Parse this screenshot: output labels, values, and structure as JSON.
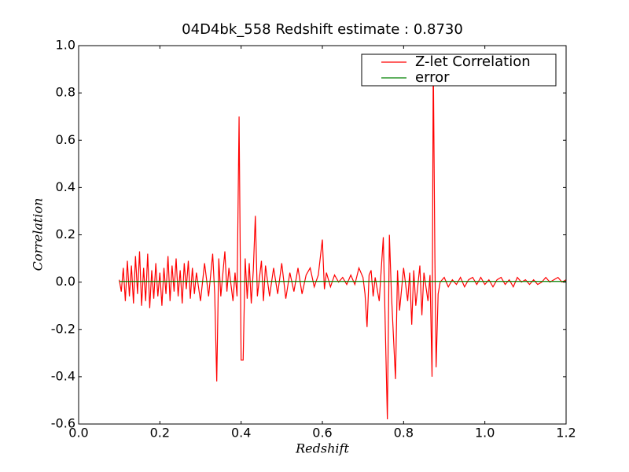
{
  "chart_data": {
    "type": "line",
    "title": "04D4bk_558 Redshift estimate : 0.8730",
    "x_label": "Redshift",
    "y_label": "Correlation",
    "xlim": [
      0,
      1.2
    ],
    "ylim": [
      -0.6,
      1.0
    ],
    "xticks": [
      {
        "value": 0,
        "label": "0.0"
      },
      0.2,
      0.4,
      0.6,
      0.8,
      {
        "value": 1,
        "label": "1.0"
      },
      1.2
    ],
    "yticks": [
      -0.6,
      -0.4,
      -0.2,
      {
        "value": 0,
        "label": "0.0"
      },
      0.2,
      0.4,
      0.6,
      0.8,
      {
        "value": 1,
        "label": "1.0"
      }
    ],
    "legend": "upper right",
    "marker": {
      "x": 0.873,
      "y": 0.9
    },
    "series": [
      {
        "name": "Z-let Correlation",
        "color": "#ff0000",
        "x": [
          0.1,
          0.105,
          0.11,
          0.115,
          0.12,
          0.125,
          0.13,
          0.135,
          0.14,
          0.145,
          0.15,
          0.155,
          0.16,
          0.165,
          0.17,
          0.175,
          0.18,
          0.185,
          0.19,
          0.195,
          0.2,
          0.205,
          0.21,
          0.215,
          0.22,
          0.225,
          0.23,
          0.235,
          0.24,
          0.245,
          0.25,
          0.255,
          0.26,
          0.265,
          0.27,
          0.275,
          0.28,
          0.285,
          0.29,
          0.3,
          0.31,
          0.32,
          0.33,
          0.335,
          0.34,
          0.345,
          0.35,
          0.36,
          0.365,
          0.37,
          0.38,
          0.385,
          0.39,
          0.395,
          0.4,
          0.405,
          0.41,
          0.415,
          0.42,
          0.425,
          0.43,
          0.435,
          0.44,
          0.45,
          0.455,
          0.46,
          0.47,
          0.48,
          0.49,
          0.5,
          0.51,
          0.52,
          0.53,
          0.54,
          0.55,
          0.56,
          0.57,
          0.58,
          0.59,
          0.6,
          0.605,
          0.61,
          0.62,
          0.63,
          0.64,
          0.65,
          0.66,
          0.67,
          0.68,
          0.69,
          0.7,
          0.705,
          0.71,
          0.715,
          0.72,
          0.725,
          0.73,
          0.74,
          0.75,
          0.755,
          0.76,
          0.765,
          0.77,
          0.78,
          0.785,
          0.79,
          0.8,
          0.81,
          0.815,
          0.82,
          0.825,
          0.83,
          0.84,
          0.845,
          0.85,
          0.86,
          0.865,
          0.87,
          0.873,
          0.877,
          0.88,
          0.885,
          0.89,
          0.9,
          0.91,
          0.92,
          0.93,
          0.94,
          0.95,
          0.96,
          0.97,
          0.98,
          0.99,
          1.0,
          1.01,
          1.02,
          1.03,
          1.04,
          1.05,
          1.06,
          1.07,
          1.08,
          1.09,
          1.1,
          1.11,
          1.12,
          1.13,
          1.14,
          1.15,
          1.16,
          1.17,
          1.18,
          1.19,
          1.2
        ],
        "values": [
          0.01,
          -0.04,
          0.06,
          -0.08,
          0.09,
          -0.06,
          0.07,
          -0.09,
          0.11,
          -0.05,
          0.13,
          -0.1,
          0.06,
          -0.08,
          0.12,
          -0.11,
          0.05,
          -0.07,
          0.08,
          -0.06,
          0.04,
          -0.1,
          0.06,
          -0.05,
          0.11,
          -0.08,
          0.07,
          -0.04,
          0.1,
          -0.06,
          0.05,
          -0.09,
          0.08,
          -0.03,
          0.09,
          -0.07,
          0.06,
          -0.05,
          0.04,
          -0.08,
          0.08,
          -0.06,
          0.12,
          -0.05,
          -0.42,
          0.1,
          -0.06,
          0.13,
          -0.04,
          0.06,
          -0.08,
          0.04,
          -0.06,
          0.7,
          -0.33,
          -0.33,
          0.1,
          -0.07,
          0.08,
          -0.09,
          0.05,
          0.28,
          -0.06,
          0.09,
          -0.08,
          0.07,
          -0.06,
          0.06,
          -0.05,
          0.08,
          -0.07,
          0.04,
          -0.04,
          0.06,
          -0.05,
          0.03,
          0.06,
          -0.02,
          0.03,
          0.18,
          -0.03,
          0.04,
          -0.02,
          0.03,
          0.0,
          0.02,
          -0.01,
          0.03,
          -0.01,
          0.06,
          0.02,
          -0.05,
          -0.19,
          0.03,
          0.05,
          -0.06,
          0.02,
          -0.08,
          0.19,
          -0.2,
          -0.58,
          0.2,
          -0.05,
          -0.41,
          0.05,
          -0.12,
          0.06,
          -0.08,
          0.04,
          -0.18,
          0.05,
          -0.1,
          0.07,
          -0.14,
          0.04,
          -0.08,
          0.03,
          -0.4,
          0.95,
          0.1,
          -0.36,
          -0.05,
          0.0,
          0.02,
          -0.02,
          0.01,
          -0.01,
          0.02,
          -0.02,
          0.01,
          0.02,
          -0.01,
          0.02,
          -0.01,
          0.01,
          -0.02,
          0.01,
          0.02,
          -0.01,
          0.01,
          -0.02,
          0.02,
          0.0,
          0.01,
          -0.01,
          0.01,
          -0.01,
          0.0,
          0.02,
          0.0,
          0.01,
          0.02,
          0.0,
          0.01
        ]
      },
      {
        "name": "error",
        "color": "#008000",
        "x": [
          0.1,
          1.2
        ],
        "values": [
          0.003,
          0.003
        ]
      }
    ]
  }
}
